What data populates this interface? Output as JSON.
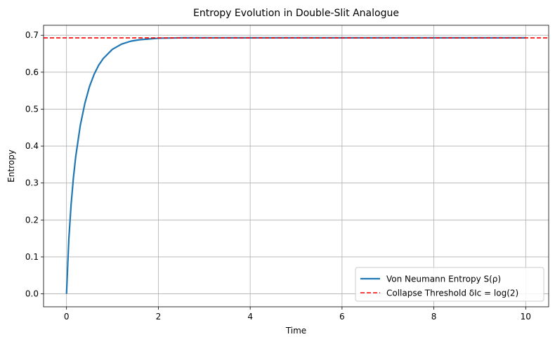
{
  "chart_data": {
    "type": "line",
    "title": "Entropy Evolution in Double-Slit Analogue",
    "xlabel": "Time",
    "ylabel": "Entropy",
    "xlim": [
      -0.5,
      10.5
    ],
    "ylim": [
      -0.035,
      0.727
    ],
    "xticks": [
      0,
      2,
      4,
      6,
      8,
      10
    ],
    "xtick_labels": [
      "0",
      "2",
      "4",
      "6",
      "8",
      "10"
    ],
    "yticks": [
      0.0,
      0.1,
      0.2,
      0.3,
      0.4,
      0.5,
      0.6,
      0.7
    ],
    "ytick_labels": [
      "0.0",
      "0.1",
      "0.2",
      "0.3",
      "0.4",
      "0.5",
      "0.6",
      "0.7"
    ],
    "grid": true,
    "legend_position": "lower-right",
    "series": [
      {
        "name": "Von Neumann Entropy S(ρ)",
        "color": "#1f77b4",
        "style": "solid",
        "x": [
          0,
          0.05,
          0.1,
          0.15,
          0.2,
          0.3,
          0.4,
          0.5,
          0.6,
          0.7,
          0.8,
          1.0,
          1.2,
          1.4,
          1.6,
          1.8,
          2.0,
          2.5,
          3.0,
          3.5,
          4.0,
          5.0,
          6.0,
          7.0,
          8.0,
          9.0,
          10.0
        ],
        "y": [
          0.0,
          0.147,
          0.242,
          0.314,
          0.371,
          0.456,
          0.516,
          0.561,
          0.594,
          0.619,
          0.637,
          0.662,
          0.676,
          0.684,
          0.688,
          0.69,
          0.692,
          0.693,
          0.693,
          0.693,
          0.693,
          0.693,
          0.693,
          0.693,
          0.693,
          0.693,
          0.693
        ]
      },
      {
        "name": "Collapse Threshold δIc = log(2)",
        "color": "#ff0000",
        "style": "dashed",
        "y": 0.693
      }
    ]
  }
}
